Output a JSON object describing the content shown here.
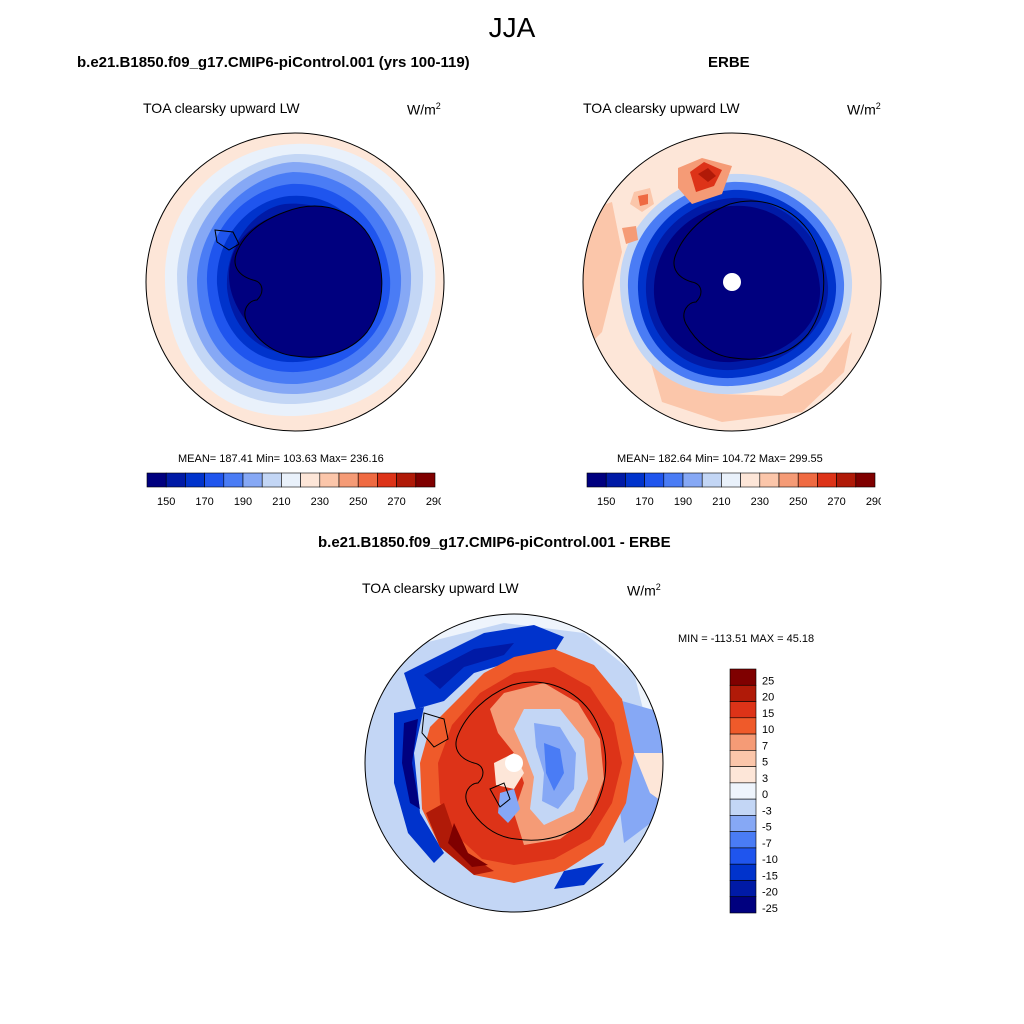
{
  "main_title": "JJA",
  "panels": [
    {
      "title": "b.e21.B1850.f09_g17.CMIP6-piControl.001 (yrs 100-119)",
      "variable": "TOA clearsky upward LW",
      "units_base": "W/m",
      "units_exp": "2",
      "stats": "MEAN= 187.41  Min= 103.63  Max= 236.16",
      "colorbar": {
        "colors": [
          "#00007f",
          "#001aa6",
          "#0033cc",
          "#1f55ee",
          "#4a7cf5",
          "#86a8f5",
          "#c3d6f5",
          "#e9f1fb",
          "#fde6d8",
          "#fbc6aa",
          "#f59b76",
          "#ef6a42",
          "#dd3318",
          "#b01a08",
          "#7f0000"
        ],
        "labels": [
          "150",
          "170",
          "190",
          "210",
          "230",
          "250",
          "270",
          "290"
        ]
      }
    },
    {
      "title": "ERBE",
      "variable": "TOA clearsky upward LW",
      "units_base": "W/m",
      "units_exp": "2",
      "stats": "MEAN= 182.64  Min= 104.72  Max= 299.55",
      "colorbar": {
        "colors": [
          "#00007f",
          "#001aa6",
          "#0033cc",
          "#1f55ee",
          "#4a7cf5",
          "#86a8f5",
          "#c3d6f5",
          "#e9f1fb",
          "#fde6d8",
          "#fbc6aa",
          "#f59b76",
          "#ef6a42",
          "#dd3318",
          "#b01a08",
          "#7f0000"
        ],
        "labels": [
          "150",
          "170",
          "190",
          "210",
          "230",
          "250",
          "270",
          "290"
        ]
      }
    },
    {
      "title": "b.e21.B1850.f09_g17.CMIP6-piControl.001 - ERBE",
      "variable": "TOA clearsky upward LW",
      "units_base": "W/m",
      "units_exp": "2",
      "stats": "MIN = -113.51 MAX =  45.18",
      "colorbar": {
        "colors": [
          "#7f0000",
          "#b01a08",
          "#dd3318",
          "#ef5a2a",
          "#f59b76",
          "#fbc6aa",
          "#fde6d8",
          "#eef4fc",
          "#c3d6f5",
          "#86a8f5",
          "#4a7cf5",
          "#1f55ee",
          "#0033cc",
          "#001aa6",
          "#00007f"
        ],
        "labels": [
          "25",
          "20",
          "15",
          "10",
          "7",
          "5",
          "3",
          "0",
          "-3",
          "-5",
          "-7",
          "-10",
          "-15",
          "-20",
          "-25"
        ]
      }
    }
  ]
}
